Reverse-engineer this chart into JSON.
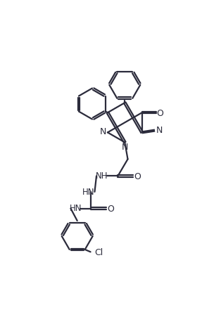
{
  "background_color": "#ffffff",
  "line_color": "#2b2b3b",
  "line_width": 1.6,
  "figsize": [
    2.87,
    4.52
  ],
  "dpi": 100,
  "xlim": [
    0,
    10
  ],
  "ylim": [
    0,
    16
  ]
}
